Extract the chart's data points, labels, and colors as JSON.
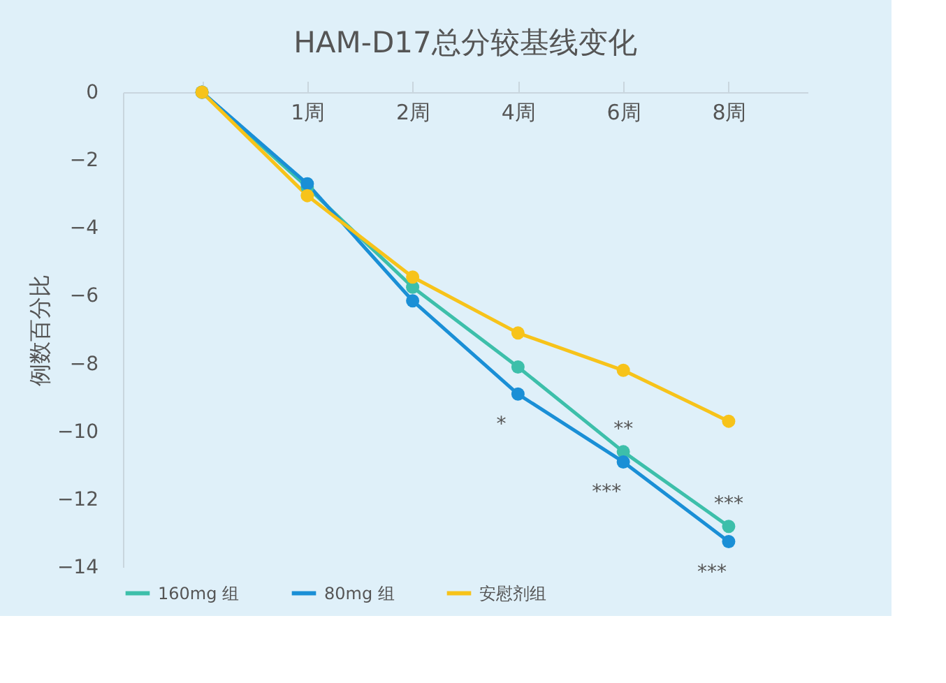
{
  "chart_data": {
    "type": "line",
    "title": "HAM-D17总分较基线变化",
    "ylabel": "例数百分比",
    "categories": [
      null,
      "1周",
      "2周",
      "4周",
      "6周",
      "8周"
    ],
    "series": [
      {
        "name": "160mg 组",
        "color": "#3dbfaa",
        "values": [
          0,
          -2.8,
          -5.75,
          -8.1,
          -10.6,
          -12.8
        ]
      },
      {
        "name": "80mg 组",
        "color": "#1a8fd6",
        "values": [
          0,
          -2.7,
          -6.15,
          -8.9,
          -10.9,
          -13.25
        ]
      },
      {
        "name": "安慰剂组",
        "color": "#f7c31a",
        "values": [
          0,
          -3.05,
          -5.45,
          -7.1,
          -8.2,
          -9.7
        ]
      }
    ],
    "ylim": [
      -14,
      0
    ],
    "yticks": [
      0,
      -2,
      -4,
      -6,
      -8,
      -10,
      -12,
      -14
    ],
    "annotations": [
      {
        "text": "*",
        "x": "4周",
        "y": -8.9
      },
      {
        "text": "**",
        "x": "6周",
        "y": -10.6
      },
      {
        "text": "***",
        "x": "6周",
        "y": -10.9
      },
      {
        "text": "***",
        "x": "8周",
        "y": -12.8
      },
      {
        "text": "***",
        "x": "8周",
        "y": -13.25
      }
    ],
    "grid": false,
    "legend": "bottom",
    "marker": "circle",
    "line_style": "solid"
  }
}
